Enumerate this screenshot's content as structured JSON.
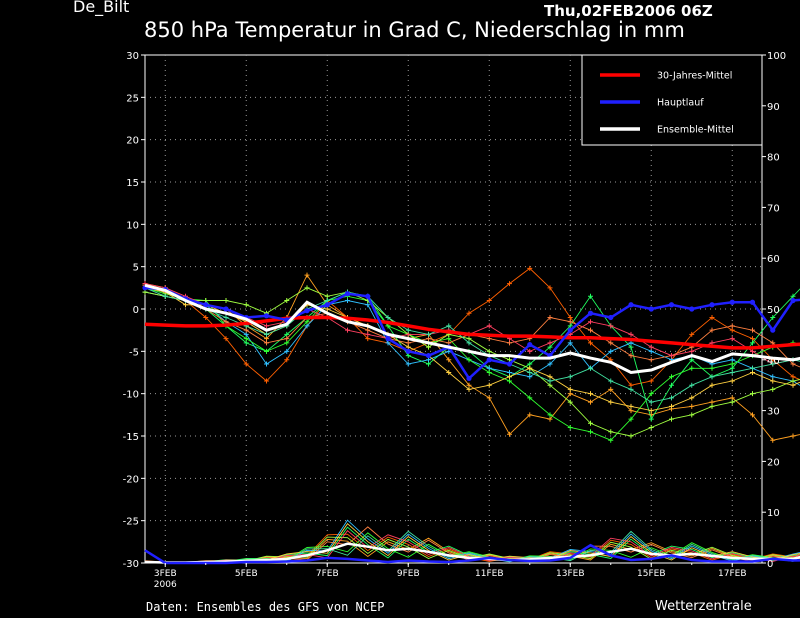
{
  "header": {
    "station": "De_Bilt",
    "runtime": "Thu,02FEB2006 06Z",
    "title": "850 hPa Temperatur in Grad C, Niederschlag in mm"
  },
  "footer": {
    "source": "Daten: Ensembles des GFS von NCEP",
    "brand": "Wetterzentrale"
  },
  "chart_data": {
    "type": "line",
    "grid": true,
    "legend_position": "top-right",
    "y_left": {
      "min": -30,
      "max": 30,
      "ticks": [
        "30",
        "25",
        "20",
        "15",
        "10",
        "5",
        "0",
        "-5",
        "-10",
        "-15",
        "-20",
        "-25",
        "-30"
      ]
    },
    "y_right": {
      "min": 0,
      "max": 100,
      "ticks": [
        "100",
        "90",
        "80",
        "70",
        "60",
        "50",
        "40",
        "30",
        "20",
        "10",
        "0"
      ]
    },
    "x_ticks": [
      {
        "day": 3,
        "label": "3FEB",
        "sub": "2006"
      },
      {
        "day": 5,
        "label": "5FEB",
        "sub": ""
      },
      {
        "day": 7,
        "label": "7FEB",
        "sub": ""
      },
      {
        "day": 9,
        "label": "9FEB",
        "sub": ""
      },
      {
        "day": 11,
        "label": "11FEB",
        "sub": ""
      },
      {
        "day": 13,
        "label": "13FEB",
        "sub": ""
      },
      {
        "day": 15,
        "label": "15FEB",
        "sub": ""
      },
      {
        "day": 17,
        "label": "17FEB",
        "sub": ""
      }
    ],
    "legend": [
      {
        "label": "30-Jahres-Mittel",
        "color": "#ff0000"
      },
      {
        "label": "Hauptlauf",
        "color": "#2020ff"
      },
      {
        "label": "Ensemble-Mittel",
        "color": "#ffffff"
      }
    ],
    "x_day_start": 2.5,
    "x_day_step": 0.5,
    "temperature": {
      "climate_mean": [
        -1.8,
        -1.9,
        -2.0,
        -2.0,
        -1.9,
        -1.7,
        -1.4,
        -1.1,
        -1.0,
        -1.0,
        -1.1,
        -1.3,
        -1.6,
        -2.0,
        -2.4,
        -2.7,
        -3.0,
        -3.1,
        -3.2,
        -3.2,
        -3.3,
        -3.4,
        -3.4,
        -3.5,
        -3.6,
        -3.8,
        -4.0,
        -4.2,
        -4.4,
        -4.6,
        -4.6,
        -4.4,
        -4.2,
        -4.1,
        -4.2,
        -4.2,
        -4.3,
        -4.3
      ],
      "main_run": [
        2.5,
        2.3,
        1.2,
        0.5,
        0.0,
        -1.0,
        -0.8,
        -1.3,
        -0.2,
        0.5,
        1.8,
        1.5,
        -3.5,
        -5.0,
        -5.5,
        -4.5,
        -8.2,
        -6.0,
        -6.5,
        -4.2,
        -5.5,
        -2.5,
        -0.5,
        -1.0,
        0.5,
        0.0,
        0.5,
        0.0,
        0.5,
        0.8,
        0.8,
        -2.5,
        1.0,
        1.2,
        -0.5,
        0.3,
        1.2,
        0.0
      ],
      "ensemble_mean": [
        2.8,
        2.2,
        1.0,
        0.0,
        -0.5,
        -1.2,
        -2.5,
        -1.8,
        0.8,
        -0.5,
        -1.5,
        -2.0,
        -3.0,
        -3.5,
        -4.0,
        -4.5,
        -5.0,
        -5.5,
        -5.5,
        -5.8,
        -5.8,
        -5.2,
        -5.8,
        -6.3,
        -7.5,
        -7.2,
        -6.3,
        -5.5,
        -6.2,
        -5.3,
        -5.5,
        -5.8,
        -6.0,
        -5.5,
        -5.8,
        -5.5,
        -5.2,
        -5.0
      ]
    },
    "ensemble_members": [
      {
        "color": "#ffa020",
        "temp": [
          3.0,
          2.5,
          1.0,
          0.5,
          0.0,
          -2.0,
          -3.5,
          -1.0,
          4.0,
          0.5,
          -1.0,
          -2.0,
          -3.0,
          -3.5,
          -3.0,
          -6.0,
          -9.0,
          -10.5,
          -14.8,
          -12.5,
          -13.0,
          -10.0,
          -11.0,
          -9.5,
          -12.0,
          -12.5,
          -11.8,
          -11.5,
          -11.0,
          -10.5,
          -12.5,
          -15.5,
          -15.0,
          -14.5,
          -12.0,
          -9.0,
          -7.0,
          -6.0
        ]
      },
      {
        "color": "#ff6000",
        "temp": [
          2.0,
          1.5,
          1.0,
          -1.0,
          -3.5,
          -6.5,
          -8.5,
          -6.0,
          -2.0,
          1.0,
          -1.0,
          -3.5,
          -4.0,
          -5.0,
          -4.0,
          -3.0,
          -0.5,
          1.0,
          3.0,
          4.8,
          2.5,
          -1.0,
          -4.0,
          -6.0,
          -9.0,
          -8.5,
          -6.0,
          -3.0,
          -1.0,
          -2.5,
          -3.5,
          -6.0,
          -8.0,
          -9.0,
          -11.0,
          -11.5,
          -10.5,
          -8.5
        ]
      },
      {
        "color": "#20ff60",
        "temp": [
          2.5,
          2.0,
          1.0,
          0.0,
          -2.0,
          -4.0,
          -5.0,
          -3.0,
          -1.0,
          1.0,
          2.0,
          1.5,
          -2.0,
          -5.5,
          -6.5,
          -4.5,
          -5.0,
          -7.0,
          -8.0,
          -6.5,
          -4.5,
          -2.0,
          1.5,
          -2.0,
          -4.5,
          -13.0,
          -9.0,
          -6.0,
          -8.0,
          -7.0,
          -4.0,
          -1.0,
          1.5,
          4.0,
          -1.0,
          -4.0,
          -3.5,
          -2.5
        ]
      },
      {
        "color": "#30c0ff",
        "temp": [
          2.0,
          1.5,
          1.0,
          0.5,
          -1.5,
          -3.0,
          -6.5,
          -5.0,
          -2.0,
          0.5,
          1.0,
          0.5,
          -4.0,
          -6.5,
          -6.0,
          -5.0,
          -6.0,
          -7.0,
          -7.5,
          -8.0,
          -6.5,
          -4.0,
          -7.0,
          -5.0,
          -4.0,
          -5.0,
          -6.0,
          -5.5,
          -6.5,
          -6.0,
          -7.0,
          -8.0,
          -8.5,
          -10.0,
          -11.0,
          -11.5,
          -12.2,
          -11.5
        ]
      },
      {
        "color": "#30ff30",
        "temp": [
          2.5,
          1.8,
          1.2,
          1.0,
          -2.0,
          -3.5,
          -5.0,
          -4.0,
          -1.5,
          1.0,
          1.5,
          1.0,
          -2.0,
          -3.0,
          -4.0,
          -3.5,
          -6.0,
          -7.5,
          -8.5,
          -10.5,
          -12.5,
          -14.0,
          -14.5,
          -15.5,
          -13.0,
          -10.0,
          -8.0,
          -7.0,
          -7.0,
          -6.5,
          -5.5,
          -4.5,
          -4.0,
          -5.0,
          -5.0,
          -4.5,
          -4.0,
          -4.0
        ]
      },
      {
        "color": "#ff8040",
        "temp": [
          2.8,
          2.0,
          1.2,
          0.0,
          -1.5,
          -2.5,
          -4.0,
          -3.5,
          -1.0,
          -0.5,
          -1.5,
          -2.5,
          -3.5,
          -4.0,
          -3.5,
          -4.0,
          -3.0,
          -3.5,
          -4.0,
          -3.5,
          -1.0,
          -1.5,
          -2.5,
          -4.0,
          -5.5,
          -6.0,
          -5.5,
          -4.5,
          -2.5,
          -2.0,
          -2.5,
          -4.0,
          -6.5,
          -7.5,
          -7.0,
          -6.0,
          -5.5,
          -5.5
        ]
      },
      {
        "color": "#a0ff40",
        "temp": [
          2.0,
          1.5,
          1.0,
          1.0,
          1.0,
          0.5,
          -0.5,
          1.0,
          2.5,
          1.5,
          2.0,
          1.0,
          -1.0,
          -3.0,
          -4.5,
          -3.0,
          -3.5,
          -5.0,
          -6.0,
          -7.0,
          -9.0,
          -11.0,
          -13.5,
          -14.5,
          -15.0,
          -14.0,
          -13.0,
          -12.5,
          -11.5,
          -11.0,
          -10.0,
          -9.5,
          -8.5,
          -8.0,
          -7.5,
          -7.0,
          -6.5,
          -6.0
        ]
      },
      {
        "color": "#ff4060",
        "temp": [
          3.0,
          2.5,
          1.5,
          0.5,
          0.0,
          -1.0,
          -2.0,
          -1.5,
          0.0,
          -1.0,
          -2.5,
          -3.0,
          -3.5,
          -3.0,
          -3.0,
          -2.5,
          -3.0,
          -2.0,
          -3.5,
          -5.0,
          -4.0,
          -3.0,
          -1.5,
          -2.0,
          -3.0,
          -4.5,
          -5.5,
          -5.0,
          -4.0,
          -3.5,
          -5.0,
          -6.5,
          -6.0,
          -5.5,
          -4.5,
          -4.0,
          -4.5,
          -5.0
        ]
      },
      {
        "color": "#ffd040",
        "temp": [
          2.5,
          2.0,
          0.5,
          0.5,
          -0.5,
          -1.5,
          -3.0,
          -2.0,
          0.5,
          0.0,
          -1.0,
          -2.0,
          -3.0,
          -4.5,
          -5.5,
          -7.5,
          -9.5,
          -9.0,
          -8.0,
          -7.0,
          -8.0,
          -9.5,
          -10.0,
          -11.0,
          -11.5,
          -12.0,
          -11.5,
          -10.5,
          -9.0,
          -8.5,
          -7.5,
          -8.5,
          -9.0,
          -8.0,
          -7.5,
          -7.0,
          -6.5,
          -6.5
        ]
      },
      {
        "color": "#40e0a0",
        "temp": [
          2.5,
          1.5,
          1.0,
          0.0,
          -1.0,
          -2.0,
          -3.0,
          -2.0,
          0.0,
          1.0,
          2.0,
          1.5,
          -1.0,
          -2.5,
          -3.0,
          -2.0,
          -4.0,
          -5.5,
          -6.5,
          -7.5,
          -8.5,
          -8.0,
          -7.0,
          -8.5,
          -9.5,
          -11.0,
          -10.5,
          -9.0,
          -8.0,
          -7.5,
          -7.0,
          -6.5,
          -6.0,
          -6.5,
          -5.5,
          -5.0,
          -4.5,
          -4.0
        ]
      }
    ],
    "precipitation": {
      "main_run": [
        2.5,
        0,
        0,
        0,
        0,
        0.2,
        0.2,
        0.3,
        0.5,
        1.0,
        0.8,
        0.5,
        0.2,
        0.5,
        0.3,
        0.2,
        0.5,
        1.0,
        0.6,
        0.4,
        0.5,
        1.0,
        3.5,
        1.5,
        0.6,
        0.8,
        1.5,
        0.6,
        0.3,
        0.3,
        0.3,
        0.8,
        0.5,
        0.6,
        0.8,
        2.0,
        4.5,
        10.5
      ],
      "ensemble_mean": [
        0.2,
        0.1,
        0.1,
        0.2,
        0.3,
        0.4,
        0.6,
        0.8,
        1.5,
        2.5,
        3.8,
        3.2,
        2.5,
        2.8,
        2.2,
        1.5,
        1.0,
        0.8,
        0.6,
        0.7,
        1.0,
        1.2,
        1.5,
        2.2,
        2.8,
        1.8,
        1.5,
        1.8,
        1.4,
        1.0,
        0.8,
        0.8,
        0.8,
        1.8,
        1.6,
        1.3,
        1.6,
        1.8
      ]
    }
  }
}
